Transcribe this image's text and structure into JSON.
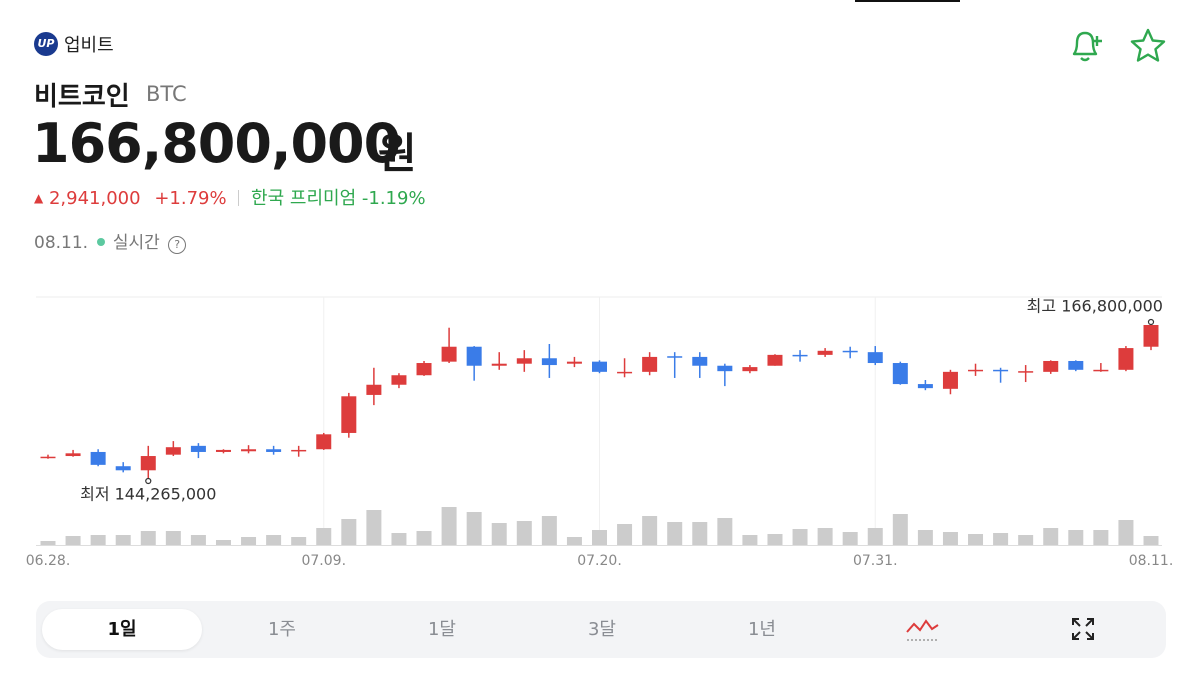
{
  "header": {
    "logo": "UP",
    "brand": "업비트",
    "name": "비트코인",
    "symbol": "BTC",
    "price": "166,800,000",
    "currency": "원",
    "change": "2,941,000",
    "change_rate": "+1.79%",
    "premium_label": "한국 프리미엄",
    "premium": "-1.19%",
    "date": "08.11.",
    "status": "실시간"
  },
  "chart_data": {
    "type": "candlestick",
    "categories": [
      "06.28.",
      null,
      null,
      null,
      null,
      null,
      null,
      null,
      null,
      null,
      null,
      "07.09.",
      null,
      null,
      null,
      null,
      null,
      null,
      null,
      null,
      null,
      null,
      "07.20.",
      null,
      null,
      null,
      null,
      null,
      null,
      null,
      null,
      null,
      null,
      "07.31.",
      null,
      null,
      null,
      null,
      null,
      null,
      null,
      null,
      null,
      null,
      "08.11."
    ],
    "open": [
      147200000,
      147500000,
      148100000,
      146000000,
      145400000,
      147700000,
      149000000,
      148100000,
      148200000,
      148500000,
      148200000,
      148500000,
      150900000,
      156500000,
      158000000,
      159400000,
      161400000,
      163600000,
      160800000,
      161100000,
      161900000,
      161100000,
      161400000,
      159700000,
      159900000,
      162200000,
      162100000,
      160800000,
      160000000,
      160800000,
      162400000,
      162400000,
      163000000,
      162800000,
      161200000,
      158100000,
      157400000,
      160000000,
      160200000,
      159900000,
      159900000,
      161500000,
      160000000,
      160200000,
      163600000
    ],
    "high": [
      147700000,
      148400000,
      148500000,
      146600000,
      149000000,
      149700000,
      149400000,
      148500000,
      149100000,
      149000000,
      149000000,
      150900000,
      156800000,
      160500000,
      159700000,
      161500000,
      166400000,
      163700000,
      162800000,
      163100000,
      164000000,
      162100000,
      161600000,
      161900000,
      162800000,
      162800000,
      162800000,
      161100000,
      160900000,
      162500000,
      163100000,
      163400000,
      163600000,
      163700000,
      161400000,
      158700000,
      160200000,
      161100000,
      160500000,
      160900000,
      161600000,
      161600000,
      161200000,
      163700000,
      166800000
    ],
    "low": [
      147100000,
      147400000,
      146000000,
      145100000,
      144265000,
      147500000,
      147200000,
      147900000,
      147900000,
      147700000,
      147400000,
      148400000,
      150200000,
      155000000,
      157500000,
      159300000,
      161200000,
      158600000,
      160200000,
      159900000,
      159000000,
      160600000,
      159700000,
      159100000,
      159400000,
      159000000,
      159000000,
      157800000,
      159700000,
      160800000,
      161400000,
      162100000,
      161900000,
      160900000,
      158000000,
      157200000,
      156600000,
      159300000,
      158300000,
      158400000,
      159600000,
      160000000,
      159900000,
      160000000,
      163100000
    ],
    "close": [
      147400000,
      147900000,
      146200000,
      145400000,
      147500000,
      148800000,
      148100000,
      148400000,
      148500000,
      148100000,
      148400000,
      150700000,
      156300000,
      158000000,
      159400000,
      161200000,
      163600000,
      160800000,
      161100000,
      161900000,
      160900000,
      161400000,
      159900000,
      159900000,
      162100000,
      162100000,
      160800000,
      160000000,
      160600000,
      162400000,
      162200000,
      163000000,
      162800000,
      161200000,
      158100000,
      157500000,
      159900000,
      160200000,
      160000000,
      160000000,
      161500000,
      160200000,
      160200000,
      163400000,
      166800000
    ],
    "volumes": [
      4,
      9,
      10,
      10,
      14,
      14,
      10,
      5,
      8,
      10,
      8,
      17,
      26,
      35,
      12,
      14,
      38,
      33,
      22,
      24,
      29,
      8,
      15,
      21,
      29,
      23,
      23,
      27,
      10,
      11,
      16,
      17,
      13,
      17,
      31,
      15,
      13,
      11,
      12,
      10,
      17,
      15,
      15,
      25,
      9
    ],
    "up_color": "#dd3c3c",
    "down_color": "#3a7ce8",
    "volume_color": "#cccccc",
    "low_label": "최저 144,265,000",
    "high_label": "최고 166,800,000",
    "grid": true
  },
  "tabs": [
    "1일",
    "1주",
    "1달",
    "3달",
    "1년"
  ]
}
